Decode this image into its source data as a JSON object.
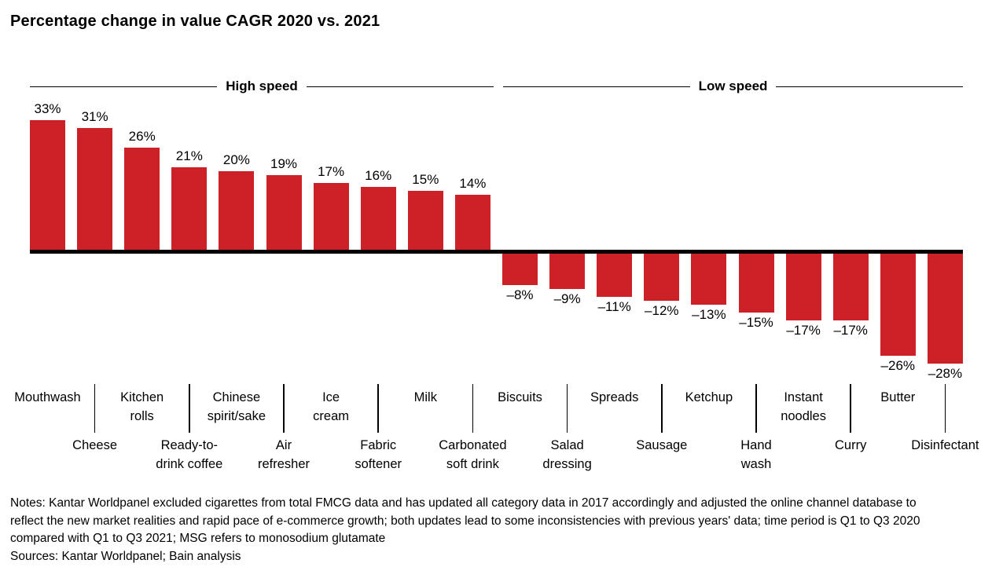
{
  "title": "Percentage change in value CAGR 2020 vs. 2021",
  "colors": {
    "bar": "#CC2127",
    "axis": "#000000",
    "text": "#000000",
    "background": "#FFFFFF"
  },
  "chart_data": {
    "type": "bar",
    "title": "Percentage change in value CAGR 2020 vs. 2021",
    "xlabel": "",
    "ylabel": "",
    "ylim": [
      -30,
      35
    ],
    "grid": false,
    "legend": "none",
    "baseline": 0,
    "unit": "%",
    "groups": [
      {
        "name": "High speed",
        "category_span": [
          0,
          9
        ]
      },
      {
        "name": "Low speed",
        "category_span": [
          10,
          19
        ]
      }
    ],
    "categories": [
      "Mouthwash",
      "Cheese",
      "Kitchen\nrolls",
      "Ready-to-\ndrink coffee",
      "Chinese\nspirit/sake",
      "Air\nrefresher",
      "Ice\ncream",
      "Fabric\nsoftener",
      "Milk",
      "Carbonated\nsoft drink",
      "Biscuits",
      "Salad\ndressing",
      "Spreads",
      "Sausage",
      "Ketchup",
      "Hand\nwash",
      "Instant\nnoodles",
      "Curry",
      "Butter",
      "Disinfectant"
    ],
    "values": [
      33,
      31,
      26,
      21,
      20,
      19,
      17,
      16,
      15,
      14,
      -8,
      -9,
      -11,
      -12,
      -13,
      -15,
      -17,
      -17,
      -26,
      -28
    ],
    "value_labels": [
      "33%",
      "31%",
      "26%",
      "21%",
      "20%",
      "19%",
      "17%",
      "16%",
      "15%",
      "14%",
      "–8%",
      "–9%",
      "–11%",
      "–12%",
      "–13%",
      "–15%",
      "–17%",
      "–17%",
      "–26%",
      "–28%"
    ]
  },
  "notes": "Notes: Kantar Worldpanel excluded cigarettes from total FMCG data and has updated all category data in 2017 accordingly and adjusted the online channel database to reflect the new market realities and rapid pace of e-commerce growth; both updates lead to some inconsistencies with previous years' data; time period is Q1 to Q3 2020 compared with Q1 to Q3 2021; MSG refers to monosodium glutamate",
  "sources": "Sources: Kantar Worldpanel; Bain analysis"
}
